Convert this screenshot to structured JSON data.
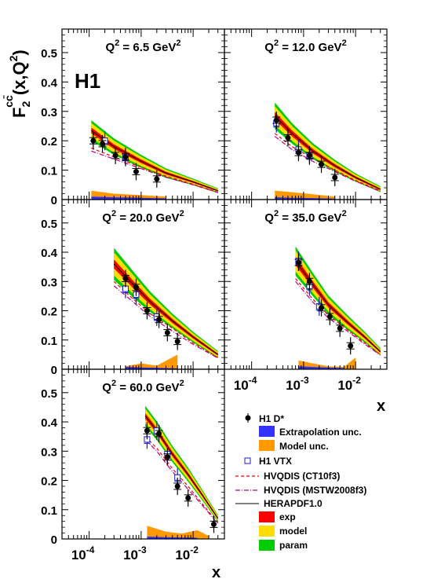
{
  "figure": {
    "experiment_label": "H1",
    "yaxis_label": "F",
    "yaxis_label_sub": "2",
    "yaxis_label_sup": "cc̄",
    "yaxis_label_tail": "(x,Q",
    "yaxis_label_tail_sup": "2",
    "yaxis_label_close": ")",
    "xaxis_label": "x",
    "y_ticks": [
      "0",
      "0.1",
      "0.2",
      "0.3",
      "0.4",
      "0.5"
    ],
    "x_ticks": [
      {
        "base": "10",
        "exp": "-4"
      },
      {
        "base": "10",
        "exp": "-3"
      },
      {
        "base": "10",
        "exp": "-2"
      }
    ],
    "colors": {
      "h1_dstar": "#000000",
      "extrapolation": "#3333ff",
      "model_unc": "#ff9900",
      "h1_vtx": "#1a1acc",
      "hvqdis_ct10": "#ff0000",
      "hvqdis_mstw": "#bb0088",
      "herapdf": "#000000",
      "band_exp": "#ff0000",
      "band_model": "#ffdd00",
      "band_param": "#00cc00"
    }
  },
  "legend": {
    "h1_dstar": "H1 D*",
    "extrapolation": "Extrapolation unc.",
    "model_unc": "Model unc.",
    "h1_vtx": "H1 VTX",
    "hvqdis_ct10": "HVQDIS (CT10f3)",
    "hvqdis_mstw": "HVQDIS (MSTW2008f3)",
    "herapdf": "HERAPDF1.0",
    "band_exp": "exp",
    "band_model": "model",
    "band_param": "param"
  },
  "chart_data": [
    {
      "type": "scatter",
      "title_q": "Q",
      "title_sup": "2",
      "title_val": " = 6.5 GeV",
      "title_unit_sup": "2",
      "xscale": "log",
      "xlim": [
        3e-05,
        0.04
      ],
      "ylim": [
        0,
        0.58
      ],
      "h1_dstar": [
        [
          0.00012,
          0.2
        ],
        [
          0.00018,
          0.19
        ],
        [
          0.00032,
          0.15
        ],
        [
          0.0005,
          0.145
        ],
        [
          0.0008,
          0.095
        ],
        [
          0.002,
          0.07
        ]
      ],
      "h1_vtx": [
        [
          0.0002,
          0.2
        ],
        [
          0.0005,
          0.145
        ]
      ],
      "herapdf_band": {
        "x": [
          0.00011,
          0.0003,
          0.001,
          0.003,
          0.01,
          0.03
        ],
        "central": [
          0.235,
          0.18,
          0.13,
          0.09,
          0.06,
          0.03
        ],
        "half_width": [
          0.035,
          0.028,
          0.022,
          0.016,
          0.011,
          0.008
        ]
      },
      "hvqdis_ct10": {
        "x": [
          0.00011,
          0.0003,
          0.001,
          0.003,
          0.01,
          0.03
        ],
        "y": [
          0.175,
          0.145,
          0.11,
          0.08,
          0.052,
          0.025
        ]
      },
      "hvqdis_mstw": {
        "x": [
          0.00011,
          0.0003,
          0.001,
          0.003,
          0.01,
          0.03
        ],
        "y": [
          0.165,
          0.138,
          0.105,
          0.076,
          0.05,
          0.024
        ]
      },
      "extrapolation_unc": {
        "x": [
          0.00011,
          0.0003,
          0.001,
          0.003
        ],
        "y": [
          0.01,
          0.008,
          0.006,
          0.004
        ]
      },
      "model_unc": {
        "x": [
          0.00011,
          0.0003,
          0.001,
          0.003
        ],
        "y": [
          0.03,
          0.02,
          0.015,
          0.01
        ]
      }
    },
    {
      "type": "scatter",
      "title_q": "Q",
      "title_sup": "2",
      "title_val": " = 12.0 GeV",
      "title_unit_sup": "2",
      "xscale": "log",
      "xlim": [
        3e-05,
        0.04
      ],
      "ylim": [
        0,
        0.58
      ],
      "h1_dstar": [
        [
          0.0003,
          0.27
        ],
        [
          0.0005,
          0.21
        ],
        [
          0.0008,
          0.16
        ],
        [
          0.0013,
          0.15
        ],
        [
          0.0022,
          0.12
        ],
        [
          0.004,
          0.075
        ]
      ],
      "h1_vtx": [
        [
          0.0003,
          0.26
        ],
        [
          0.0008,
          0.17
        ],
        [
          0.0013,
          0.15
        ]
      ],
      "herapdf_band": {
        "x": [
          0.00028,
          0.0006,
          0.0015,
          0.004,
          0.01,
          0.03
        ],
        "central": [
          0.285,
          0.225,
          0.165,
          0.115,
          0.075,
          0.035
        ],
        "half_width": [
          0.045,
          0.035,
          0.027,
          0.02,
          0.014,
          0.01
        ]
      },
      "hvqdis_ct10": {
        "x": [
          0.00028,
          0.0006,
          0.0015,
          0.004,
          0.01,
          0.03
        ],
        "y": [
          0.225,
          0.18,
          0.14,
          0.1,
          0.065,
          0.03
        ]
      },
      "hvqdis_mstw": {
        "x": [
          0.00028,
          0.0006,
          0.0015,
          0.004,
          0.01,
          0.03
        ],
        "y": [
          0.215,
          0.17,
          0.13,
          0.095,
          0.062,
          0.028
        ]
      },
      "extrapolation_unc": {
        "x": [
          0.00028,
          0.0006,
          0.0015,
          0.004
        ],
        "y": [
          0.008,
          0.006,
          0.005,
          0.003
        ]
      },
      "model_unc": {
        "x": [
          0.00028,
          0.0006,
          0.0015,
          0.004
        ],
        "y": [
          0.03,
          0.025,
          0.018,
          0.01
        ]
      }
    },
    {
      "type": "scatter",
      "title_q": "Q",
      "title_sup": "2",
      "title_val": " = 20.0 GeV",
      "title_unit_sup": "2",
      "xscale": "log",
      "xlim": [
        3e-05,
        0.04
      ],
      "ylim": [
        0,
        0.58
      ],
      "h1_dstar": [
        [
          0.0005,
          0.31
        ],
        [
          0.0008,
          0.28
        ],
        [
          0.0013,
          0.2
        ],
        [
          0.0022,
          0.17
        ],
        [
          0.0032,
          0.125
        ],
        [
          0.005,
          0.095
        ]
      ],
      "h1_vtx": [
        [
          0.0005,
          0.275
        ],
        [
          0.0008,
          0.255
        ],
        [
          0.002,
          0.18
        ]
      ],
      "herapdf_band": {
        "x": [
          0.0003,
          0.0007,
          0.0015,
          0.004,
          0.01,
          0.03
        ],
        "central": [
          0.36,
          0.29,
          0.23,
          0.165,
          0.11,
          0.05
        ],
        "half_width": [
          0.055,
          0.045,
          0.035,
          0.025,
          0.018,
          0.012
        ]
      },
      "hvqdis_ct10": {
        "x": [
          0.0003,
          0.0007,
          0.0015,
          0.004,
          0.01,
          0.03
        ],
        "y": [
          0.3,
          0.24,
          0.19,
          0.14,
          0.09,
          0.04
        ]
      },
      "hvqdis_mstw": {
        "x": [
          0.0003,
          0.0007,
          0.0015,
          0.004,
          0.01,
          0.03
        ],
        "y": [
          0.285,
          0.23,
          0.18,
          0.13,
          0.085,
          0.038
        ]
      },
      "extrapolation_unc": {
        "x": [
          0.0005,
          0.001,
          0.002,
          0.005
        ],
        "y": [
          0.008,
          0.006,
          0.005,
          0.003
        ]
      },
      "model_unc": {
        "x": [
          0.0005,
          0.001,
          0.002,
          0.005
        ],
        "y": [
          0.01,
          0.02,
          0.012,
          0.05
        ]
      }
    },
    {
      "type": "scatter",
      "title_q": "Q",
      "title_sup": "2",
      "title_val": " = 35.0 GeV",
      "title_unit_sup": "2",
      "xscale": "log",
      "xlim": [
        3e-05,
        0.04
      ],
      "ylim": [
        0,
        0.58
      ],
      "h1_dstar": [
        [
          0.0008,
          0.365
        ],
        [
          0.0013,
          0.3
        ],
        [
          0.0022,
          0.21
        ],
        [
          0.0032,
          0.18
        ],
        [
          0.005,
          0.14
        ],
        [
          0.008,
          0.08
        ]
      ],
      "h1_vtx": [
        [
          0.0008,
          0.37
        ],
        [
          0.0013,
          0.285
        ],
        [
          0.002,
          0.215
        ]
      ],
      "herapdf_band": {
        "x": [
          0.0007,
          0.0015,
          0.003,
          0.007,
          0.015,
          0.03
        ],
        "central": [
          0.37,
          0.29,
          0.22,
          0.16,
          0.11,
          0.06
        ],
        "half_width": [
          0.05,
          0.04,
          0.032,
          0.025,
          0.018,
          0.012
        ]
      },
      "hvqdis_ct10": {
        "x": [
          0.0007,
          0.0015,
          0.003,
          0.007,
          0.015,
          0.03
        ],
        "y": [
          0.31,
          0.24,
          0.185,
          0.135,
          0.09,
          0.05
        ]
      },
      "hvqdis_mstw": {
        "x": [
          0.0007,
          0.0015,
          0.003,
          0.007,
          0.015,
          0.03
        ],
        "y": [
          0.3,
          0.23,
          0.175,
          0.13,
          0.086,
          0.048
        ]
      },
      "extrapolation_unc": {
        "x": [
          0.0008,
          0.0015,
          0.003,
          0.006
        ],
        "y": [
          0.01,
          0.008,
          0.006,
          0.004
        ]
      },
      "model_unc": {
        "x": [
          0.0008,
          0.0015,
          0.003,
          0.006,
          0.01
        ],
        "y": [
          0.03,
          0.02,
          0.01,
          0.008,
          0.04
        ]
      }
    },
    {
      "type": "scatter",
      "title_q": "Q",
      "title_sup": "2",
      "title_val": " = 60.0 GeV",
      "title_unit_sup": "2",
      "xscale": "log",
      "xlim": [
        3e-05,
        0.04
      ],
      "ylim": [
        0,
        0.58
      ],
      "h1_dstar": [
        [
          0.0013,
          0.37
        ],
        [
          0.0022,
          0.36
        ],
        [
          0.0032,
          0.28
        ],
        [
          0.005,
          0.18
        ],
        [
          0.008,
          0.14
        ],
        [
          0.025,
          0.05
        ]
      ],
      "h1_vtx": [
        [
          0.0013,
          0.34
        ],
        [
          0.002,
          0.37
        ],
        [
          0.0032,
          0.29
        ],
        [
          0.005,
          0.21
        ]
      ],
      "herapdf_band": {
        "x": [
          0.0012,
          0.002,
          0.004,
          0.008,
          0.015,
          0.03
        ],
        "central": [
          0.42,
          0.37,
          0.29,
          0.22,
          0.15,
          0.07
        ],
        "half_width": [
          0.035,
          0.032,
          0.028,
          0.024,
          0.018,
          0.012
        ]
      },
      "hvqdis_ct10": {
        "x": [
          0.0012,
          0.002,
          0.004,
          0.008,
          0.015,
          0.03
        ],
        "y": [
          0.35,
          0.31,
          0.24,
          0.18,
          0.12,
          0.055
        ]
      },
      "hvqdis_mstw": {
        "x": [
          0.0012,
          0.002,
          0.004,
          0.008,
          0.015,
          0.03
        ],
        "y": [
          0.34,
          0.3,
          0.23,
          0.17,
          0.115,
          0.052
        ]
      },
      "extrapolation_unc": {
        "x": [
          0.0013,
          0.003,
          0.006,
          0.012
        ],
        "y": [
          0.008,
          0.006,
          0.005,
          0.004
        ]
      },
      "model_unc": {
        "x": [
          0.0013,
          0.003,
          0.006,
          0.012,
          0.02
        ],
        "y": [
          0.045,
          0.025,
          0.018,
          0.03,
          0.01
        ]
      }
    }
  ]
}
